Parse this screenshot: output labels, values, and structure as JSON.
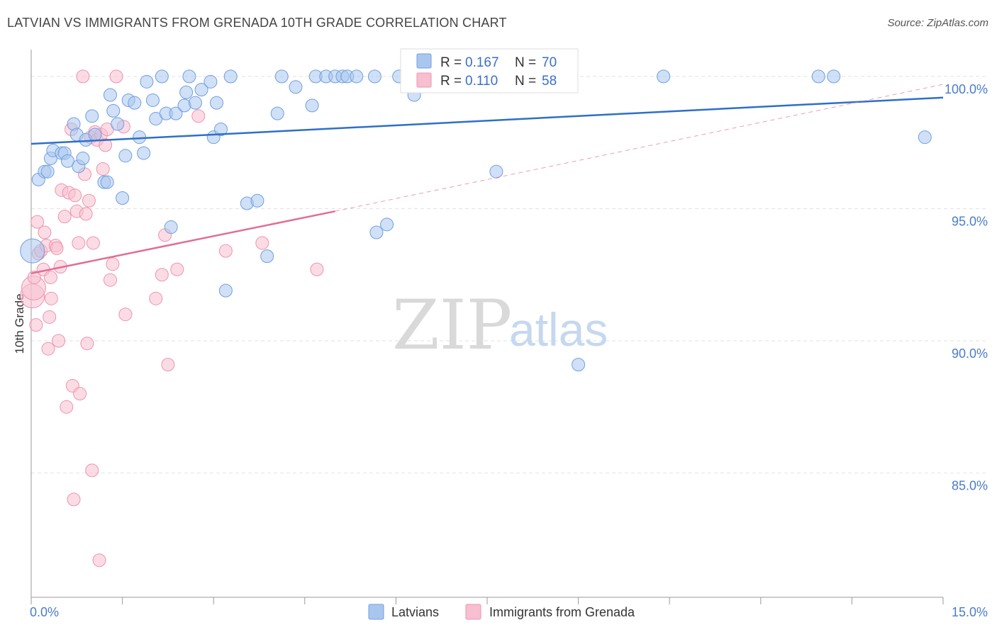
{
  "title": "LATVIAN VS IMMIGRANTS FROM GRENADA 10TH GRADE CORRELATION CHART",
  "source": "Source: ZipAtlas.com",
  "watermark": {
    "zip": "ZIP",
    "atlas": "atlas"
  },
  "colors": {
    "latvian_fill": "#a9c7ee",
    "latvian_stroke": "#6f9fe0",
    "latvian_line": "#2f6fc7",
    "grenada_fill": "#f7bfd0",
    "grenada_stroke": "#ee93ae",
    "grenada_line": "#e06e94",
    "grid": "#e2e2e2",
    "tick_label": "#4a7cc9"
  },
  "chart_data": {
    "type": "scatter",
    "title": "LATVIAN VS IMMIGRANTS FROM GRENADA 10TH GRADE CORRELATION CHART",
    "xlabel": "",
    "ylabel": "10th Grade",
    "xlim": [
      0,
      15
    ],
    "ylim": [
      80.3,
      100.8
    ],
    "x_tick_labels": [
      "0.0%",
      "15.0%"
    ],
    "y_ticks": [
      85,
      90,
      95,
      100
    ],
    "y_tick_labels": [
      "85.0%",
      "90.0%",
      "95.0%",
      "100.0%"
    ],
    "legend": [
      {
        "series": "Latvians",
        "r_label": "R =",
        "r_value": "0.167",
        "n_label": "N =",
        "n_value": "70"
      },
      {
        "series": "Immigrants from Grenada",
        "r_label": "R =",
        "r_value": "0.110",
        "n_label": "N =",
        "n_value": "58"
      }
    ],
    "series": [
      {
        "name": "Latvians",
        "trend": {
          "x": [
            0,
            15
          ],
          "y": [
            97.45,
            99.2
          ]
        },
        "points": [
          [
            0.02,
            93.4
          ],
          [
            0.12,
            96.1
          ],
          [
            0.22,
            96.4
          ],
          [
            0.27,
            96.4
          ],
          [
            0.32,
            96.9
          ],
          [
            0.36,
            97.2
          ],
          [
            0.5,
            97.1
          ],
          [
            0.55,
            97.1
          ],
          [
            0.6,
            96.8
          ],
          [
            0.7,
            98.2
          ],
          [
            0.75,
            97.8
          ],
          [
            0.78,
            96.6
          ],
          [
            0.85,
            96.9
          ],
          [
            0.9,
            97.6
          ],
          [
            1.0,
            98.5
          ],
          [
            1.05,
            97.8
          ],
          [
            1.2,
            96.0
          ],
          [
            1.25,
            96.0
          ],
          [
            1.3,
            99.3
          ],
          [
            1.35,
            98.7
          ],
          [
            1.42,
            98.2
          ],
          [
            1.5,
            95.4
          ],
          [
            1.55,
            97.0
          ],
          [
            1.6,
            99.1
          ],
          [
            1.7,
            99.0
          ],
          [
            1.78,
            97.7
          ],
          [
            1.85,
            97.1
          ],
          [
            1.9,
            99.8
          ],
          [
            2.0,
            99.1
          ],
          [
            2.05,
            98.4
          ],
          [
            2.15,
            100.0
          ],
          [
            2.22,
            98.6
          ],
          [
            2.3,
            94.3
          ],
          [
            2.38,
            98.6
          ],
          [
            2.52,
            98.9
          ],
          [
            2.55,
            99.4
          ],
          [
            2.6,
            100.0
          ],
          [
            2.7,
            99.0
          ],
          [
            2.8,
            99.5
          ],
          [
            2.95,
            99.8
          ],
          [
            3.0,
            97.7
          ],
          [
            3.05,
            99.0
          ],
          [
            3.12,
            98.0
          ],
          [
            3.2,
            91.9
          ],
          [
            3.28,
            100.0
          ],
          [
            3.55,
            95.2
          ],
          [
            3.72,
            95.3
          ],
          [
            3.88,
            93.2
          ],
          [
            4.05,
            98.6
          ],
          [
            4.12,
            100.0
          ],
          [
            4.35,
            99.6
          ],
          [
            4.62,
            98.9
          ],
          [
            4.68,
            100.0
          ],
          [
            4.85,
            100.0
          ],
          [
            5.0,
            100.0
          ],
          [
            5.12,
            100.0
          ],
          [
            5.2,
            100.0
          ],
          [
            5.35,
            100.0
          ],
          [
            5.65,
            100.0
          ],
          [
            5.68,
            94.1
          ],
          [
            5.85,
            94.4
          ],
          [
            6.05,
            100.0
          ],
          [
            6.3,
            99.3
          ],
          [
            7.65,
            96.4
          ],
          [
            8.15,
            100.0
          ],
          [
            9.0,
            89.1
          ],
          [
            10.4,
            100.0
          ],
          [
            12.95,
            100.0
          ],
          [
            13.2,
            100.0
          ],
          [
            14.7,
            97.7
          ]
        ]
      },
      {
        "name": "Immigrants from Grenada",
        "trend": {
          "x": [
            0,
            5.0
          ],
          "y": [
            92.55,
            94.9
          ]
        },
        "trend_extension": {
          "x": [
            5.0,
            15.0
          ],
          "y": [
            94.9,
            99.7
          ]
        },
        "points": [
          [
            0.02,
            91.7
          ],
          [
            0.04,
            92.0
          ],
          [
            0.05,
            92.4
          ],
          [
            0.08,
            90.6
          ],
          [
            0.1,
            94.5
          ],
          [
            0.12,
            93.3
          ],
          [
            0.16,
            93.4
          ],
          [
            0.2,
            92.7
          ],
          [
            0.22,
            94.1
          ],
          [
            0.25,
            93.6
          ],
          [
            0.28,
            89.7
          ],
          [
            0.3,
            90.9
          ],
          [
            0.32,
            92.4
          ],
          [
            0.33,
            91.6
          ],
          [
            0.4,
            93.6
          ],
          [
            0.42,
            93.5
          ],
          [
            0.45,
            90.0
          ],
          [
            0.48,
            92.8
          ],
          [
            0.5,
            95.7
          ],
          [
            0.55,
            94.7
          ],
          [
            0.58,
            87.5
          ],
          [
            0.62,
            95.6
          ],
          [
            0.66,
            98.0
          ],
          [
            0.68,
            88.3
          ],
          [
            0.7,
            84.0
          ],
          [
            0.72,
            95.5
          ],
          [
            0.75,
            94.9
          ],
          [
            0.78,
            93.7
          ],
          [
            0.8,
            88.0
          ],
          [
            0.85,
            100.0
          ],
          [
            0.88,
            96.3
          ],
          [
            0.9,
            94.8
          ],
          [
            0.92,
            89.9
          ],
          [
            0.95,
            95.3
          ],
          [
            0.98,
            97.7
          ],
          [
            1.0,
            85.1
          ],
          [
            1.02,
            93.7
          ],
          [
            1.05,
            97.9
          ],
          [
            1.08,
            97.6
          ],
          [
            1.12,
            81.7
          ],
          [
            1.15,
            97.8
          ],
          [
            1.18,
            96.5
          ],
          [
            1.22,
            97.4
          ],
          [
            1.25,
            98.0
          ],
          [
            1.3,
            92.3
          ],
          [
            1.34,
            92.9
          ],
          [
            1.4,
            100.0
          ],
          [
            1.52,
            98.1
          ],
          [
            1.55,
            91.0
          ],
          [
            2.05,
            91.6
          ],
          [
            2.15,
            92.5
          ],
          [
            2.2,
            94.0
          ],
          [
            2.25,
            89.1
          ],
          [
            2.4,
            92.7
          ],
          [
            2.75,
            98.5
          ],
          [
            3.2,
            93.4
          ],
          [
            3.8,
            93.7
          ],
          [
            4.7,
            92.7
          ]
        ]
      }
    ]
  }
}
